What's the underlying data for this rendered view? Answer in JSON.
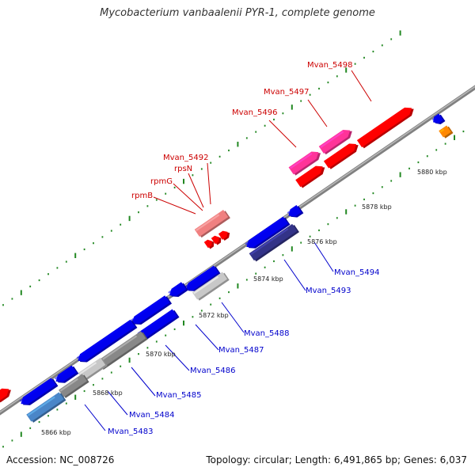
{
  "title": "Mycobacterium vanbaalenii PYR-1, complete genome",
  "footer": {
    "accession": "Accession: NC_008726",
    "stats": "Topology: circular; Length: 6,491,865 bp; Genes: 6,037"
  },
  "colors": {
    "forward_strand": "#ff0000",
    "forward_light": "#f08080",
    "forward_magenta": "#ff3399",
    "reverse_strand": "#0000ee",
    "reverse_dark": "#333388",
    "reverse_steel": "#4a86c8",
    "reverse_grey": "#888888",
    "reverse_light_grey": "#c8c8c8",
    "other_orange": "#ff8800",
    "backbone": "#808080",
    "tick": "#228822",
    "forward_label": "#cc0000",
    "reverse_label": "#0000cc"
  },
  "scale_labels": [
    "5866 kbp",
    "5868 kbp",
    "5870 kbp",
    "5872 kbp",
    "5874 kbp",
    "5876 kbp",
    "5878 kbp",
    "5880 kbp"
  ],
  "forward_labels": [
    "rpmB",
    "rpmG",
    "rpsN",
    "Mvan_5492",
    "Mvan_5496",
    "Mvan_5497",
    "Mvan_5498"
  ],
  "reverse_labels": [
    "Mvan_5483",
    "Mvan_5484",
    "Mvan_5485",
    "Mvan_5486",
    "Mvan_5487",
    "Mvan_5488",
    "Mvan_5493",
    "Mvan_5494"
  ]
}
